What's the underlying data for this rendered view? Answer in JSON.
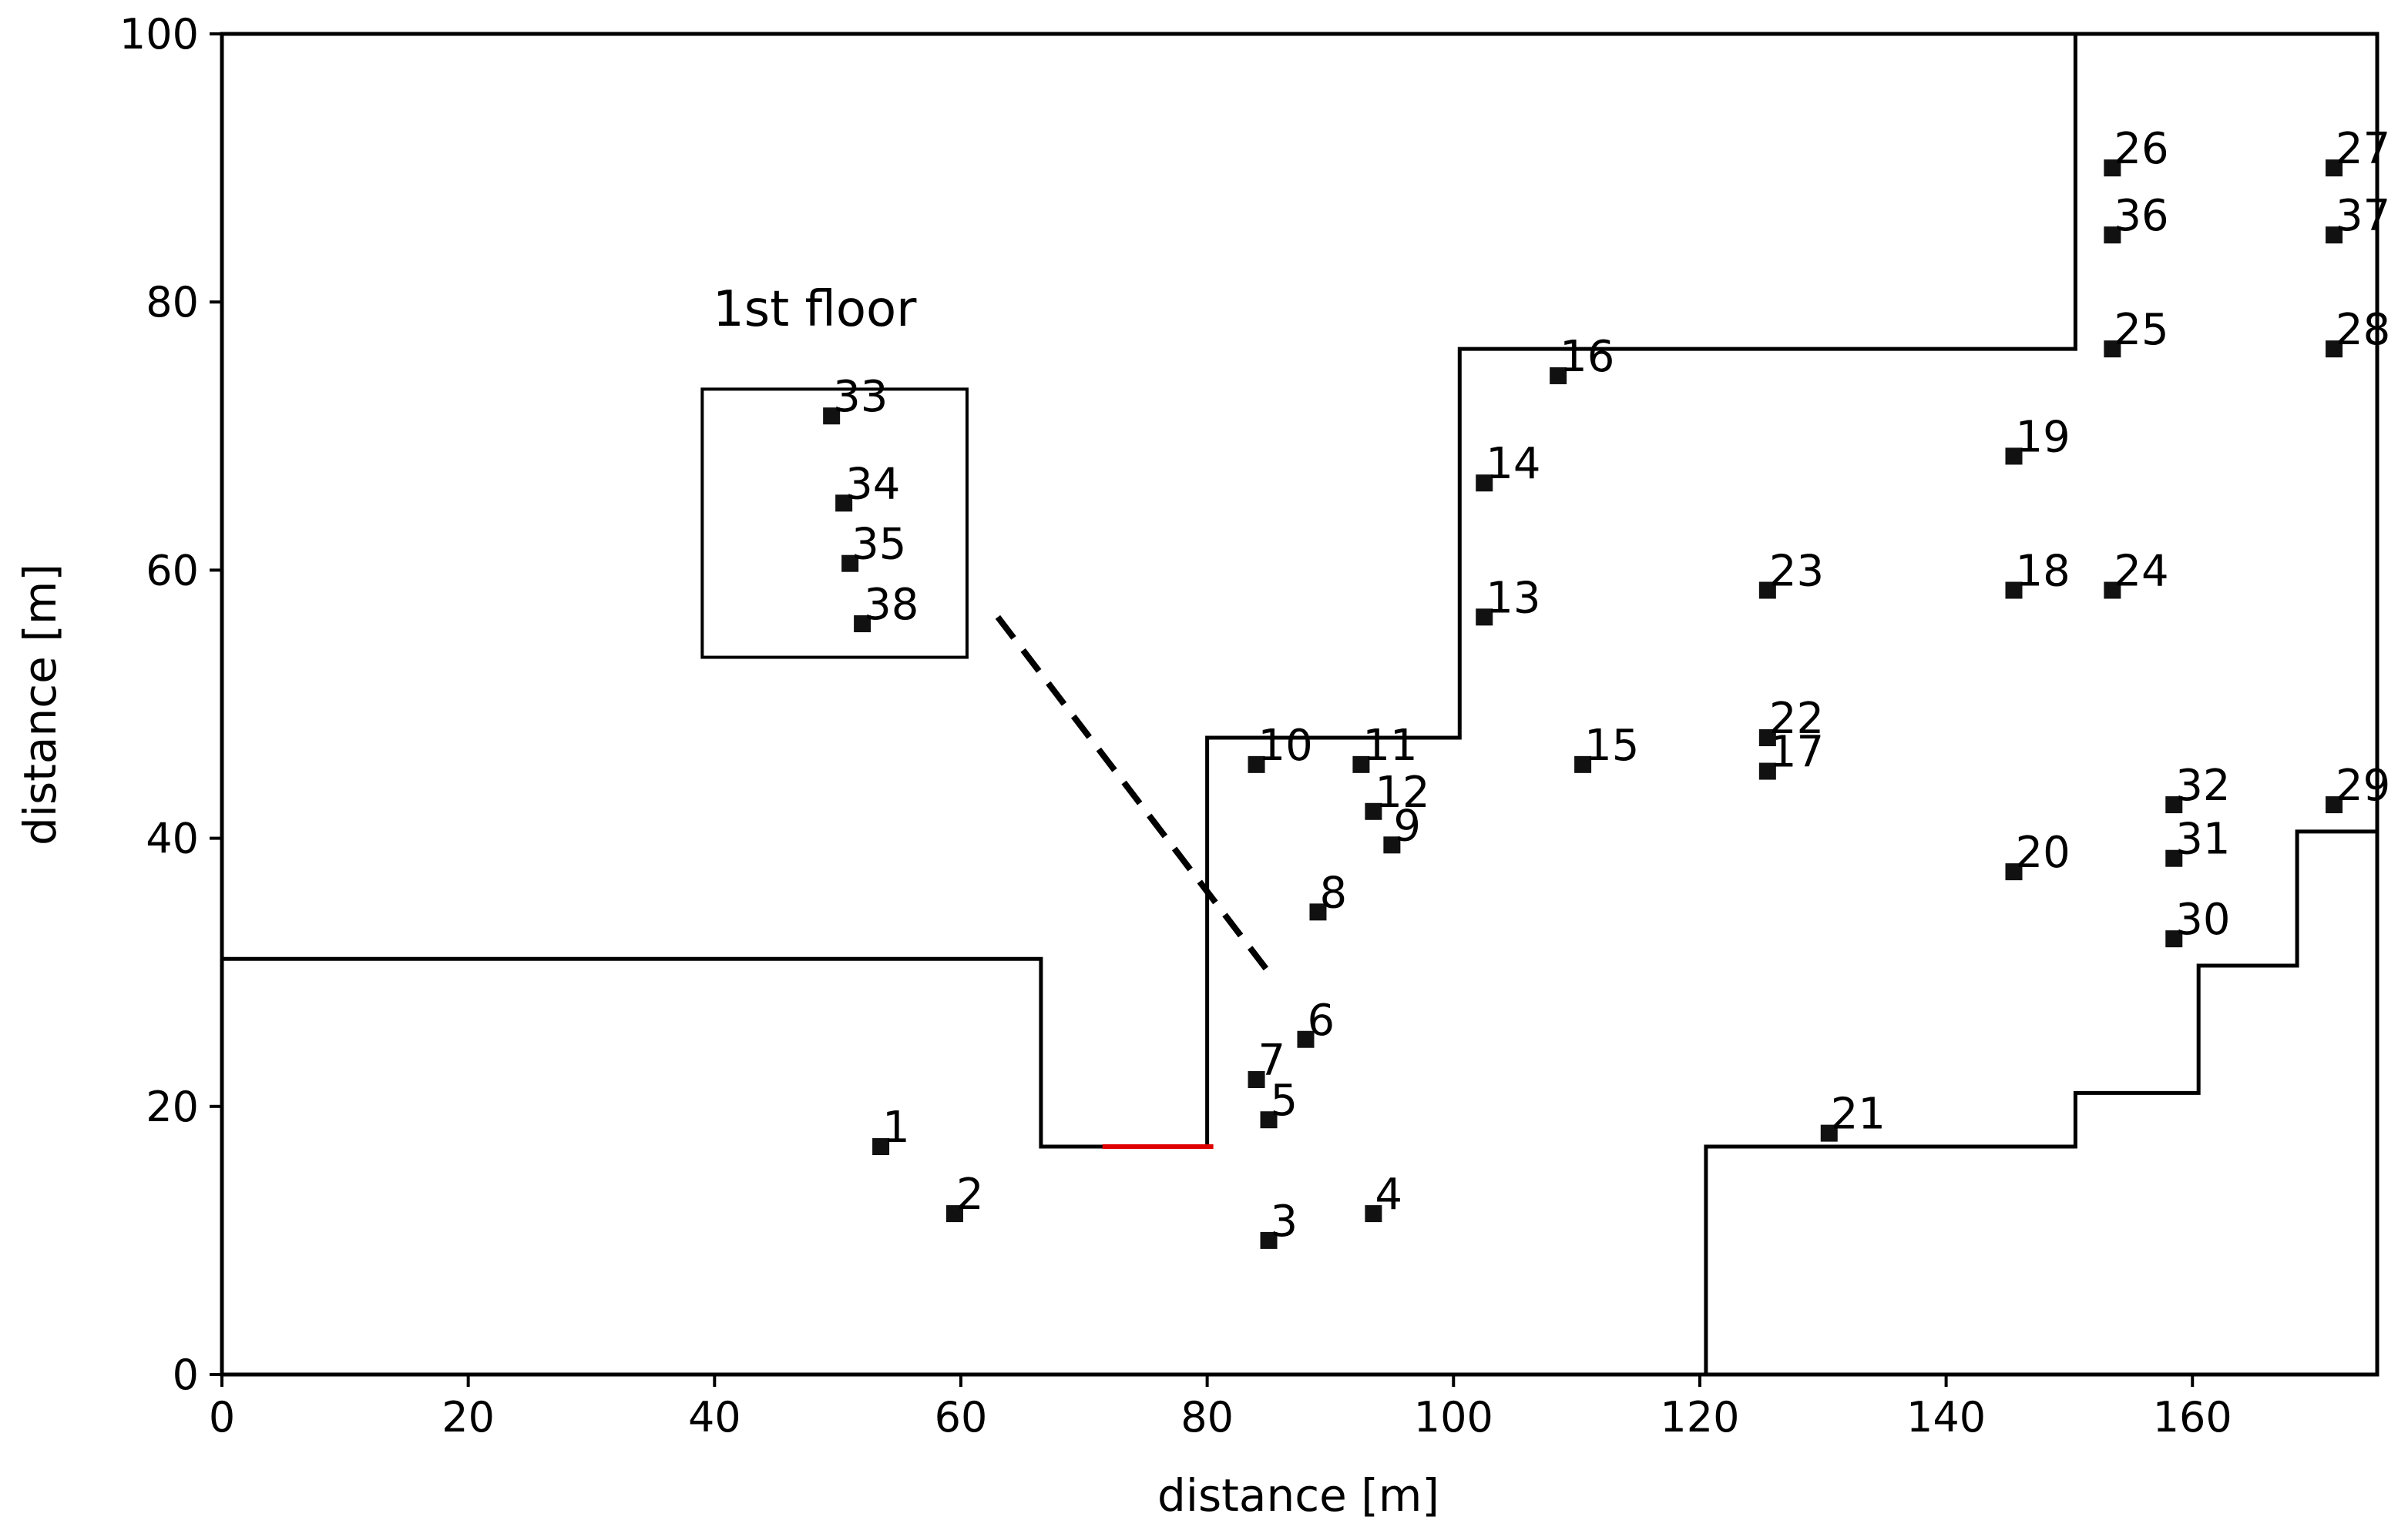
{
  "chart_data": {
    "type": "scatter",
    "title": "",
    "xlabel": "distance [m]",
    "ylabel": "distance [m]",
    "xlim": [
      0,
      175
    ],
    "ylim": [
      0,
      100
    ],
    "xticks": [
      0,
      20,
      40,
      60,
      80,
      100,
      120,
      140,
      160
    ],
    "yticks": [
      0,
      20,
      40,
      60,
      80,
      100
    ],
    "grid": false,
    "annotation": "1st floor",
    "points": [
      {
        "label": "1",
        "x": 53.5,
        "y": 17
      },
      {
        "label": "2",
        "x": 59.5,
        "y": 12
      },
      {
        "label": "3",
        "x": 85,
        "y": 10
      },
      {
        "label": "4",
        "x": 93.5,
        "y": 12
      },
      {
        "label": "5",
        "x": 85,
        "y": 19
      },
      {
        "label": "6",
        "x": 88,
        "y": 25
      },
      {
        "label": "7",
        "x": 84,
        "y": 22
      },
      {
        "label": "8",
        "x": 89,
        "y": 34.5
      },
      {
        "label": "9",
        "x": 95,
        "y": 39.5
      },
      {
        "label": "10",
        "x": 84,
        "y": 45.5
      },
      {
        "label": "11",
        "x": 92.5,
        "y": 45.5
      },
      {
        "label": "12",
        "x": 93.5,
        "y": 42
      },
      {
        "label": "13",
        "x": 102.5,
        "y": 56.5
      },
      {
        "label": "14",
        "x": 102.5,
        "y": 66.5
      },
      {
        "label": "15",
        "x": 110.5,
        "y": 45.5
      },
      {
        "label": "16",
        "x": 108.5,
        "y": 74.5
      },
      {
        "label": "17",
        "x": 125.5,
        "y": 45
      },
      {
        "label": "18",
        "x": 145.5,
        "y": 58.5
      },
      {
        "label": "19",
        "x": 145.5,
        "y": 68.5
      },
      {
        "label": "20",
        "x": 145.5,
        "y": 37.5
      },
      {
        "label": "21",
        "x": 130.5,
        "y": 18
      },
      {
        "label": "22",
        "x": 125.5,
        "y": 47.5
      },
      {
        "label": "23",
        "x": 125.5,
        "y": 58.5
      },
      {
        "label": "24",
        "x": 153.5,
        "y": 58.5
      },
      {
        "label": "25",
        "x": 153.5,
        "y": 76.5
      },
      {
        "label": "26",
        "x": 153.5,
        "y": 90
      },
      {
        "label": "27",
        "x": 171.5,
        "y": 90
      },
      {
        "label": "28",
        "x": 171.5,
        "y": 76.5
      },
      {
        "label": "29",
        "x": 171.5,
        "y": 42.5
      },
      {
        "label": "30",
        "x": 158.5,
        "y": 32.5
      },
      {
        "label": "31",
        "x": 158.5,
        "y": 38.5
      },
      {
        "label": "32",
        "x": 158.5,
        "y": 42.5
      },
      {
        "label": "33",
        "x": 49.5,
        "y": 71.5
      },
      {
        "label": "34",
        "x": 50.5,
        "y": 65
      },
      {
        "label": "35",
        "x": 51,
        "y": 60.5
      },
      {
        "label": "36",
        "x": 153.5,
        "y": 85
      },
      {
        "label": "37",
        "x": 171.5,
        "y": 85
      },
      {
        "label": "38",
        "x": 52,
        "y": 56
      }
    ],
    "building_outline": [
      [
        0,
        31
      ],
      [
        66.5,
        31
      ],
      [
        66.5,
        17
      ],
      [
        80,
        17
      ],
      [
        80,
        47.5
      ],
      [
        100.5,
        47.5
      ],
      [
        100.5,
        76.5
      ],
      [
        150.5,
        76.5
      ],
      [
        150.5,
        100
      ]
    ],
    "outline_right": [
      [
        120.5,
        0
      ],
      [
        120.5,
        17
      ],
      [
        150.5,
        17
      ],
      [
        150.5,
        21
      ],
      [
        160.5,
        21
      ],
      [
        160.5,
        30.5
      ],
      [
        168.5,
        30.5
      ],
      [
        168.5,
        40.5
      ],
      [
        175,
        40.5
      ]
    ],
    "floor_box": [
      [
        39,
        53.5
      ],
      [
        60.5,
        73.5
      ]
    ],
    "dashed_line": [
      [
        63,
        56.5
      ],
      [
        85,
        30
      ]
    ],
    "red_segment": [
      [
        71.5,
        17
      ],
      [
        80.5,
        17
      ]
    ]
  }
}
